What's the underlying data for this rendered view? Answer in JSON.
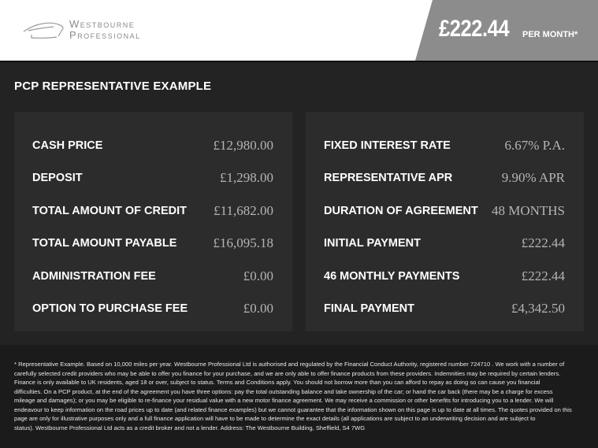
{
  "header": {
    "brand_line1": "Westbourne",
    "brand_line2": "Professional",
    "price": "£222.44",
    "per_month": "PER MONTH*"
  },
  "title": "PCP REPRESENTATIVE EXAMPLE",
  "left": [
    {
      "label": "CASH PRICE",
      "value": "£12,980.00"
    },
    {
      "label": "DEPOSIT",
      "value": "£1,298.00"
    },
    {
      "label": "TOTAL AMOUNT OF CREDIT",
      "value": "£11,682.00"
    },
    {
      "label": "TOTAL AMOUNT PAYABLE",
      "value": "£16,095.18"
    },
    {
      "label": "ADMINISTRATION FEE",
      "value": "£0.00"
    },
    {
      "label": "OPTION TO PURCHASE FEE",
      "value": "£0.00"
    }
  ],
  "right": [
    {
      "label": "FIXED INTEREST RATE",
      "value": "6.67% P.A."
    },
    {
      "label": "REPRESENTATIVE APR",
      "value": "9.90% APR"
    },
    {
      "label": "DURATION OF AGREEMENT",
      "value": "48 MONTHS"
    },
    {
      "label": "INITIAL PAYMENT",
      "value": "£222.44"
    },
    {
      "label": "46 MONTHLY PAYMENTS",
      "value": "£222.44"
    },
    {
      "label": "FINAL PAYMENT",
      "value": "£4,342.50"
    }
  ],
  "disclaimer": [
    "* Representative Example. Based on 10,000 miles per year. Westbourne Professional Ltd is authorised and regulated by the Financial Conduct Authority, registered number 724710 . We work with a number of",
    "carefully selected credit providers who may be able to offer you finance for your purchase, and we are only able to offer finance products from these providers. Indemnities may be required by certain lenders.",
    "Finance is only available to UK residents, aged 18 or over, subject to status. Terms and Conditions apply. You should not borrow more than you can afford to repay as doing so can cause you financial",
    "difficulties. On a PCP product, at the end of the agreement you have three options: pay the total outstanding balance and take ownership of the car; or hand the car back (there may be a charge for excess",
    "mileage and damages); or you may be eligible to re-finance your residual value with a new motor finance agreement. We may receive a commission or other benefits for introducing you to a lender. We will",
    "endeavour to keep information on the road prices up to date (and related finance examples) but we cannot guarantee that the information shown on this page is up to date at all times. The quotes provided on this",
    "page are only for illustrative purposes only and a full finance application will have to be made to determine the exact details (all applications are subject to an underwriting decision and are subject to",
    "status). Westbourne Professional Ltd acts as a credit broker and not a lender. Address: The Westbourne Building, Sheffield, S4 7WG"
  ]
}
